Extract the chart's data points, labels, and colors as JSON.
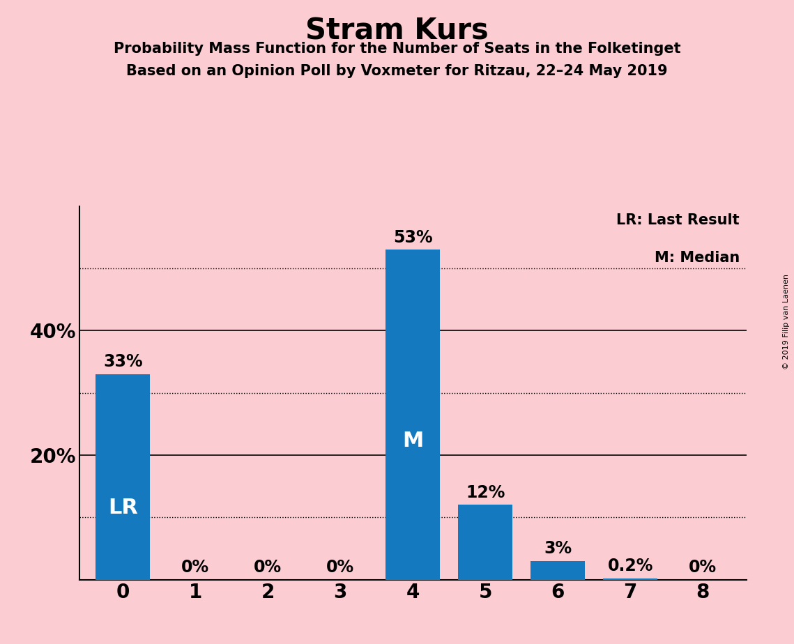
{
  "title": "Stram Kurs",
  "subtitle1": "Probability Mass Function for the Number of Seats in the Folketinget",
  "subtitle2": "Based on an Opinion Poll by Voxmeter for Ritzau, 22–24 May 2019",
  "copyright": "© 2019 Filip van Laenen",
  "categories": [
    0,
    1,
    2,
    3,
    4,
    5,
    6,
    7,
    8
  ],
  "values": [
    33,
    0,
    0,
    0,
    53,
    12,
    3,
    0.2,
    0
  ],
  "bar_color": "#1579BF",
  "background_color": "#FBCDD2",
  "label_LR_bar": 0,
  "label_M_bar": 4,
  "legend_LR": "LR: Last Result",
  "legend_M": "M: Median",
  "bar_labels": [
    "33%",
    "0%",
    "0%",
    "0%",
    "53%",
    "12%",
    "3%",
    "0.2%",
    "0%"
  ],
  "ylim": [
    0,
    60
  ],
  "yticks": [
    20,
    40
  ],
  "ytick_labels": [
    "20%",
    "40%"
  ],
  "dotted_gridlines": [
    10,
    30,
    50
  ],
  "solid_gridlines": [
    20,
    40
  ],
  "figsize": [
    11.39,
    9.24
  ],
  "dpi": 100
}
